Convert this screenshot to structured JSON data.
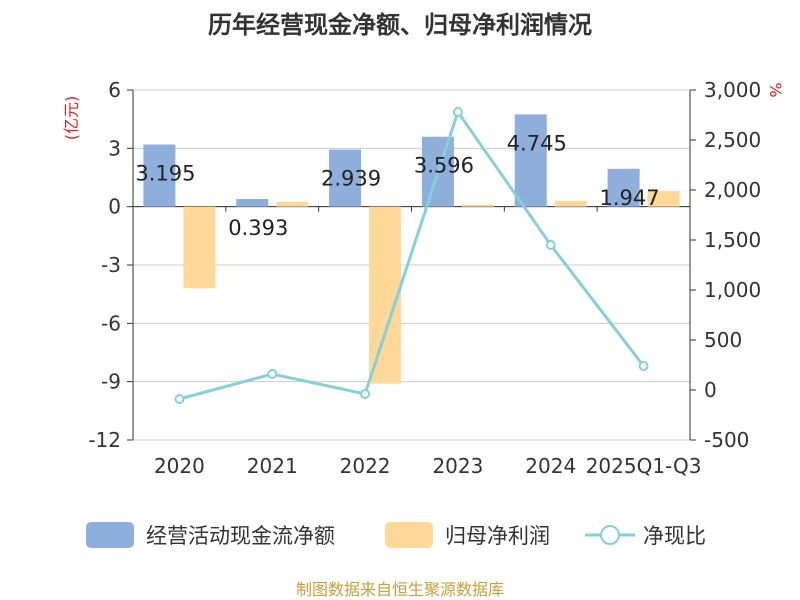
{
  "chart_data": {
    "type": "bar",
    "title": "历年经营现金净额、归母净利润情况",
    "categories": [
      "2020",
      "2021",
      "2022",
      "2023",
      "2024",
      "2025Q1-Q3"
    ],
    "y_left": {
      "unit": "(亿元)",
      "range": [
        -12,
        6
      ],
      "ticks": [
        "6",
        "3",
        "0",
        "-3",
        "-6",
        "-9",
        "-12"
      ],
      "tick_values": [
        6,
        3,
        0,
        -3,
        -6,
        -9,
        -12
      ]
    },
    "y_right": {
      "unit": "%",
      "range": [
        -500,
        3000
      ],
      "ticks": [
        "3,000",
        "2,500",
        "2,000",
        "1,500",
        "1,000",
        "500",
        "0",
        "-500"
      ],
      "tick_values": [
        3000,
        2500,
        2000,
        1500,
        1000,
        500,
        0,
        -500
      ]
    },
    "series": [
      {
        "name": "经营活动现金流净额",
        "type": "bar",
        "axis": "left",
        "color": "#8eaedb",
        "values": [
          3.195,
          0.393,
          2.939,
          3.596,
          4.745,
          1.947
        ],
        "labels": [
          "3.195",
          "0.393",
          "2.939",
          "3.596",
          "4.745",
          "1.947"
        ]
      },
      {
        "name": "归母净利润",
        "type": "bar",
        "axis": "left",
        "color": "#fdd898",
        "values": [
          -4.2,
          0.25,
          -9.1,
          0.1,
          0.3,
          0.8
        ]
      },
      {
        "name": "净现比",
        "type": "line",
        "axis": "right",
        "color": "#86d0d8",
        "values": [
          -90,
          160,
          -40,
          2780,
          1450,
          240
        ]
      }
    ],
    "grid": true,
    "legend_position": "bottom"
  },
  "footer": {
    "source": "制图数据来自恒生聚源数据库"
  }
}
